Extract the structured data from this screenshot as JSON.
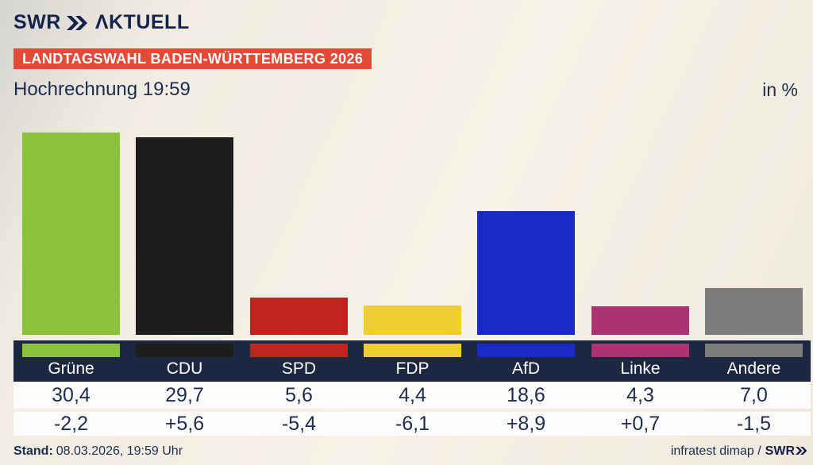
{
  "brand": {
    "logo_text": "SWR",
    "logo_chevrons_icon": "double-chevron-right",
    "logo_section": "ΛKTUELL"
  },
  "header": {
    "badge": "LANDTAGSWAHL BADEN-WÜRTTEMBERG 2026",
    "title": "Hochrechnung 19:59",
    "unit_label": "in %"
  },
  "chart_data": {
    "type": "bar",
    "orientation": "vertical",
    "title": "Hochrechnung 19:59",
    "unit": "in %",
    "categories": [
      "Grüne",
      "CDU",
      "SPD",
      "FDP",
      "AfD",
      "Linke",
      "Andere"
    ],
    "values": [
      30.4,
      29.7,
      5.6,
      4.4,
      18.6,
      4.3,
      7.0
    ],
    "value_labels": [
      "30,4",
      "29,7",
      "5,6",
      "4,4",
      "18,6",
      "4,3",
      "7,0"
    ],
    "changes": [
      -2.2,
      5.6,
      -5.4,
      -6.1,
      8.9,
      0.7,
      -1.5
    ],
    "change_labels": [
      "-2,2",
      "+5,6",
      "-5,4",
      "-6,1",
      "+8,9",
      "+0,7",
      "-1,5"
    ],
    "bar_colors": [
      "#8cc13a",
      "#1d1d1b",
      "#c1241d",
      "#f0ce32",
      "#1a2ac6",
      "#ac3272",
      "#7c7c7a"
    ],
    "ylim": [
      0,
      32
    ],
    "grid": false,
    "legend": "none"
  },
  "footer": {
    "stand_label": "Stand:",
    "stand_value": "08.03.2026, 19:59 Uhr",
    "source": "infratest dimap /",
    "source_brand": "SWR",
    "source_brand_chevrons_icon": "double-chevron-right"
  },
  "colors": {
    "background": "#f3eee3",
    "badge_red": "#e24b38",
    "band_navy": "#1c2742",
    "text_navy": "#1d2c4e",
    "row_white": "#fdfdfb",
    "logo_navy": "#14234a"
  }
}
